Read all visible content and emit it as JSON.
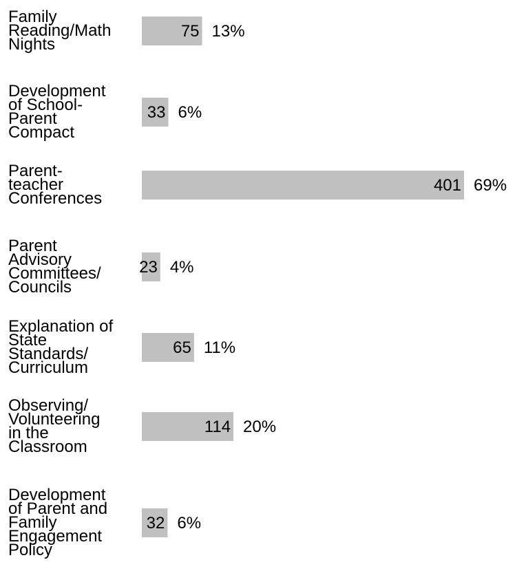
{
  "chart_data": {
    "type": "bar",
    "orientation": "horizontal",
    "categories": [
      "Family Reading/Math Nights",
      "Development of School-Parent Compact",
      "Parent-teacher Conferences",
      "Parent Advisory Committees/ Councils",
      "Explanation of State Standards/ Curriculum",
      "Observing/ Volunteering in the Classroom",
      "Development of Parent and Family Engagement Policy"
    ],
    "category_lines": [
      [
        "Family",
        "Reading/Math",
        "Nights"
      ],
      [
        "Development",
        "of School-",
        "Parent",
        "Compact"
      ],
      [
        "Parent-",
        "teacher",
        "Conferences"
      ],
      [
        "Parent",
        "Advisory",
        "Committees/",
        "Councils"
      ],
      [
        "Explanation of",
        "State",
        "Standards/",
        "Curriculum"
      ],
      [
        "Observing/",
        "Volunteering",
        "in the",
        "Classroom"
      ],
      [
        "Development",
        "of Parent and",
        "Family",
        "Engagement",
        "Policy"
      ]
    ],
    "values": [
      75,
      33,
      401,
      23,
      65,
      114,
      32
    ],
    "value_labels": [
      "75",
      "33",
      "401",
      "23",
      "65",
      "114",
      "32"
    ],
    "percent_labels": [
      "13%",
      "6%",
      "69%",
      "4%",
      "11%",
      "20%",
      "6%"
    ],
    "title": "",
    "xlabel": "",
    "ylabel": "",
    "xlim": [
      0,
      401
    ],
    "grid": false,
    "bar_color": "#c0c0c0"
  }
}
